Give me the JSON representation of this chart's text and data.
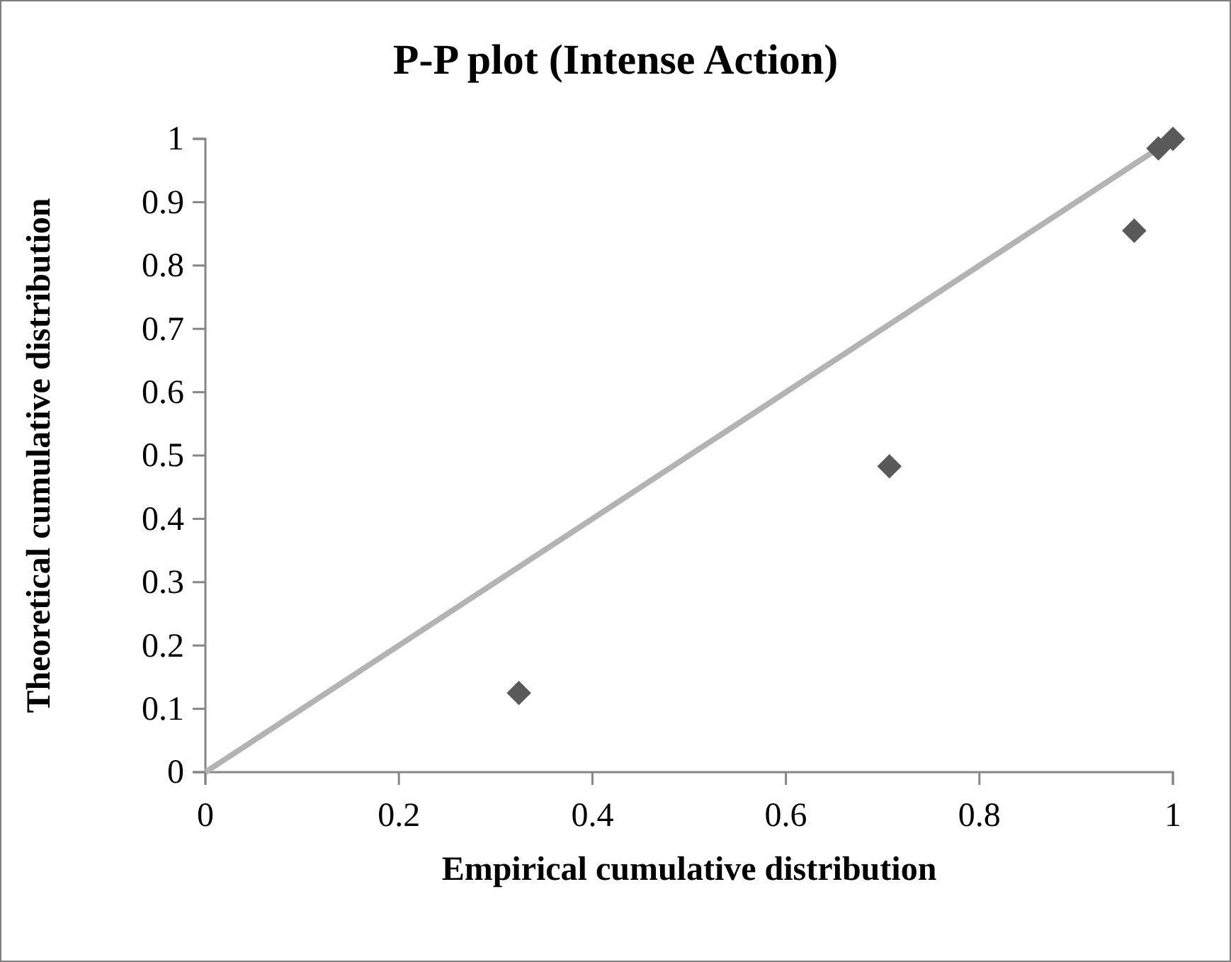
{
  "chart_data": {
    "type": "scatter",
    "title": "P-P plot (Intense Action)",
    "xlabel": "Empirical cumulative distribution",
    "ylabel": "Theoretical cumulative distribution",
    "xlim": [
      0,
      1
    ],
    "xticks": [
      0,
      0.2,
      0.4,
      0.6,
      0.8,
      1
    ],
    "ylim": [
      0,
      1
    ],
    "yticks": [
      0,
      0.1,
      0.2,
      0.3,
      0.4,
      0.5,
      0.6,
      0.7,
      0.8,
      0.9,
      1
    ],
    "grid": false,
    "marker": "diamond",
    "series": [
      {
        "type": "line",
        "color": "#b3b3b3",
        "x": [
          0,
          0.985
        ],
        "values": [
          0,
          0.985
        ],
        "marker": "none"
      },
      {
        "color": "#595959",
        "x": [
          0.324,
          0.707,
          0.96,
          0.985,
          1
        ],
        "values": [
          0.125,
          0.483,
          0.855,
          0.985,
          1
        ]
      }
    ]
  }
}
